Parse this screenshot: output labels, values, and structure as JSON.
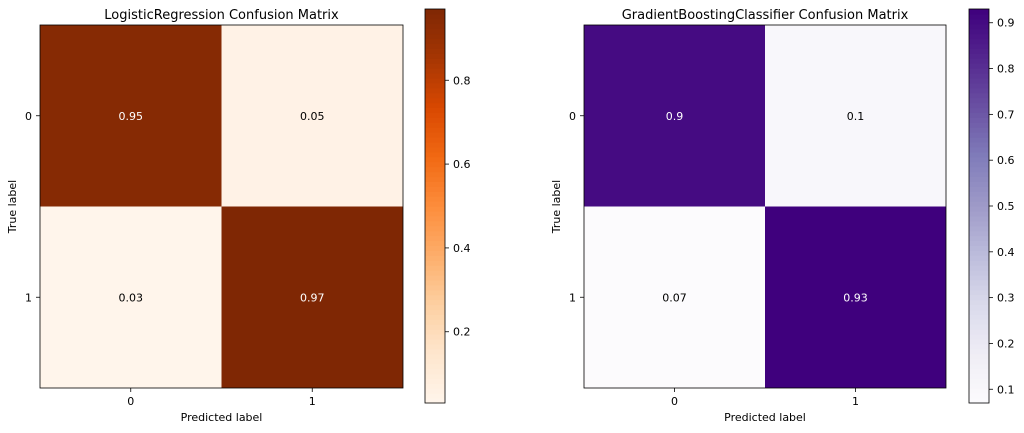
{
  "chart_data": [
    {
      "type": "heatmap",
      "title": "LogisticRegression Confusion Matrix",
      "xlabel": "Predicted label",
      "ylabel": "True label",
      "x_ticks": [
        "0",
        "1"
      ],
      "y_ticks": [
        "0",
        "1"
      ],
      "values": [
        [
          0.95,
          0.05
        ],
        [
          0.03,
          0.97
        ]
      ],
      "cell_labels": [
        [
          "0.95",
          "0.05"
        ],
        [
          "0.03",
          "0.97"
        ]
      ],
      "colormap": "Oranges",
      "colorbar": {
        "range": [
          0.03,
          0.97
        ],
        "ticks": [
          0.2,
          0.4,
          0.6,
          0.8
        ],
        "tick_labels": [
          "0.2",
          "0.4",
          "0.6",
          "0.8"
        ]
      }
    },
    {
      "type": "heatmap",
      "title": "GradientBoostingClassifier Confusion Matrix",
      "xlabel": "Predicted label",
      "ylabel": "True label",
      "x_ticks": [
        "0",
        "1"
      ],
      "y_ticks": [
        "0",
        "1"
      ],
      "values": [
        [
          0.9,
          0.1
        ],
        [
          0.07,
          0.93
        ]
      ],
      "cell_labels": [
        [
          "0.9",
          "0.1"
        ],
        [
          "0.07",
          "0.93"
        ]
      ],
      "colormap": "Purples",
      "colorbar": {
        "range": [
          0.07,
          0.93
        ],
        "ticks": [
          0.1,
          0.2,
          0.3,
          0.4,
          0.5,
          0.6,
          0.7,
          0.8,
          0.9
        ],
        "tick_labels": [
          "0.1",
          "0.2",
          "0.3",
          "0.4",
          "0.5",
          "0.6",
          "0.7",
          "0.8",
          "0.9"
        ]
      }
    }
  ]
}
